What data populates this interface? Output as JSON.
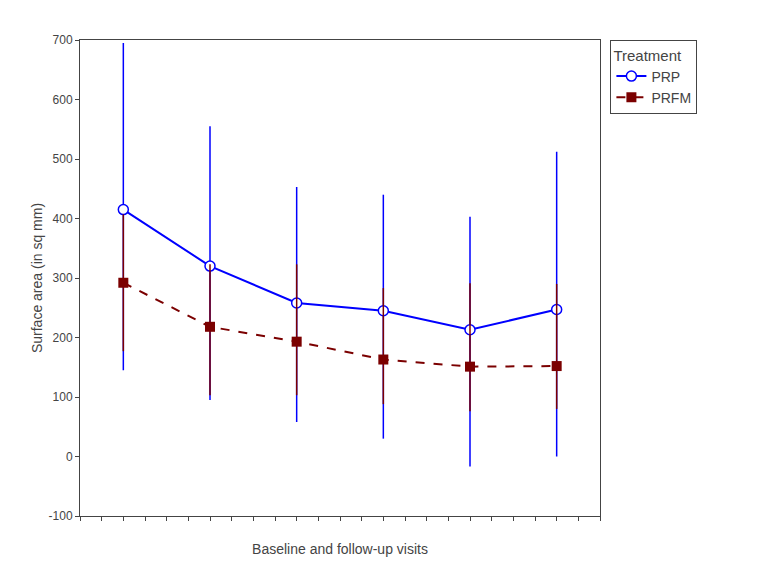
{
  "chart_data": {
    "type": "line",
    "xlabel": "Baseline and follow-up visits",
    "ylabel": "Surface area (in sq mm)",
    "legend_title": "Treatment",
    "x": [
      1,
      2,
      3,
      4,
      5,
      6
    ],
    "series": [
      {
        "name": "PRP",
        "color": "#0000ff",
        "marker": "open_circle",
        "line_style": "solid",
        "values": [
          415,
          320,
          258,
          245,
          213,
          247
        ],
        "error_upper": [
          280,
          235,
          195,
          195,
          190,
          265
        ],
        "error_lower": [
          270,
          225,
          200,
          215,
          230,
          247
        ]
      },
      {
        "name": "PRFM",
        "color": "#7b0000",
        "marker": "square",
        "line_style": "dashed",
        "values": [
          292,
          218,
          193,
          163,
          151,
          152
        ],
        "error_upper": [
          115,
          105,
          130,
          120,
          140,
          138
        ],
        "error_lower": [
          115,
          115,
          90,
          75,
          75,
          72
        ]
      }
    ],
    "xlim": [
      0.5,
      6.5
    ],
    "xticks": [
      0.5,
      0.75,
      1.0,
      1.25,
      1.5,
      1.75,
      2.0,
      2.25,
      2.5,
      2.75,
      3.0,
      3.25,
      3.5,
      3.75,
      4.0,
      4.25,
      4.5,
      4.75,
      5.0,
      5.25,
      5.5,
      5.75,
      6.0,
      6.25,
      6.5
    ],
    "ylim": [
      -100,
      700
    ],
    "yticks": [
      -100,
      0,
      100,
      200,
      300,
      400,
      500,
      600,
      700
    ],
    "tick_labels": "y",
    "grid": false,
    "legend": "right"
  }
}
